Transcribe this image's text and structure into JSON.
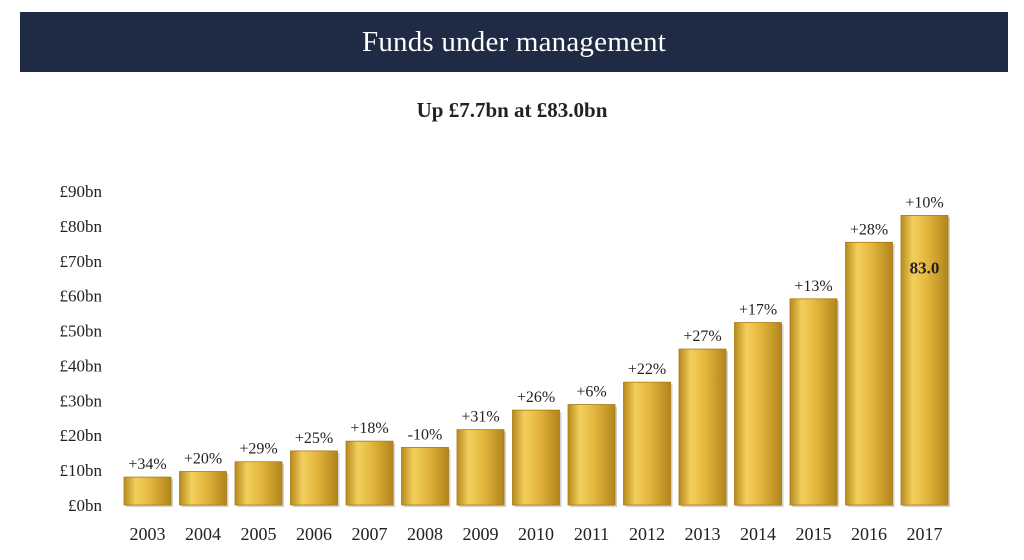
{
  "header": {
    "title": "Funds under management"
  },
  "chart_data": {
    "type": "bar",
    "title": "Up £7.7bn at £83.0bn",
    "xlabel": "",
    "ylabel": "",
    "ylim": [
      0,
      90
    ],
    "y_ticks": [
      0,
      10,
      20,
      30,
      40,
      50,
      60,
      70,
      80,
      90
    ],
    "y_tick_labels": [
      "£0bn",
      "£10bn",
      "£20bn",
      "£30bn",
      "£40bn",
      "£50bn",
      "£60bn",
      "£70bn",
      "£80bn",
      "£90bn"
    ],
    "categories": [
      "2003",
      "2004",
      "2005",
      "2006",
      "2007",
      "2008",
      "2009",
      "2010",
      "2011",
      "2012",
      "2013",
      "2014",
      "2015",
      "2016",
      "2017"
    ],
    "values": [
      8.0,
      9.6,
      12.4,
      15.5,
      18.3,
      16.5,
      21.6,
      27.2,
      28.8,
      35.2,
      44.7,
      52.3,
      59.1,
      75.3,
      83.0
    ],
    "growth_labels": [
      "+34%",
      "+20%",
      "+29%",
      "+25%",
      "+18%",
      "-10%",
      "+31%",
      "+26%",
      "+6%",
      "+22%",
      "+27%",
      "+17%",
      "+13%",
      "+28%",
      "+10%"
    ],
    "value_labels": [
      {
        "index": 14,
        "text": "83.0"
      }
    ],
    "bar_color": "#e0b43c",
    "grid": false,
    "legend": "none"
  }
}
